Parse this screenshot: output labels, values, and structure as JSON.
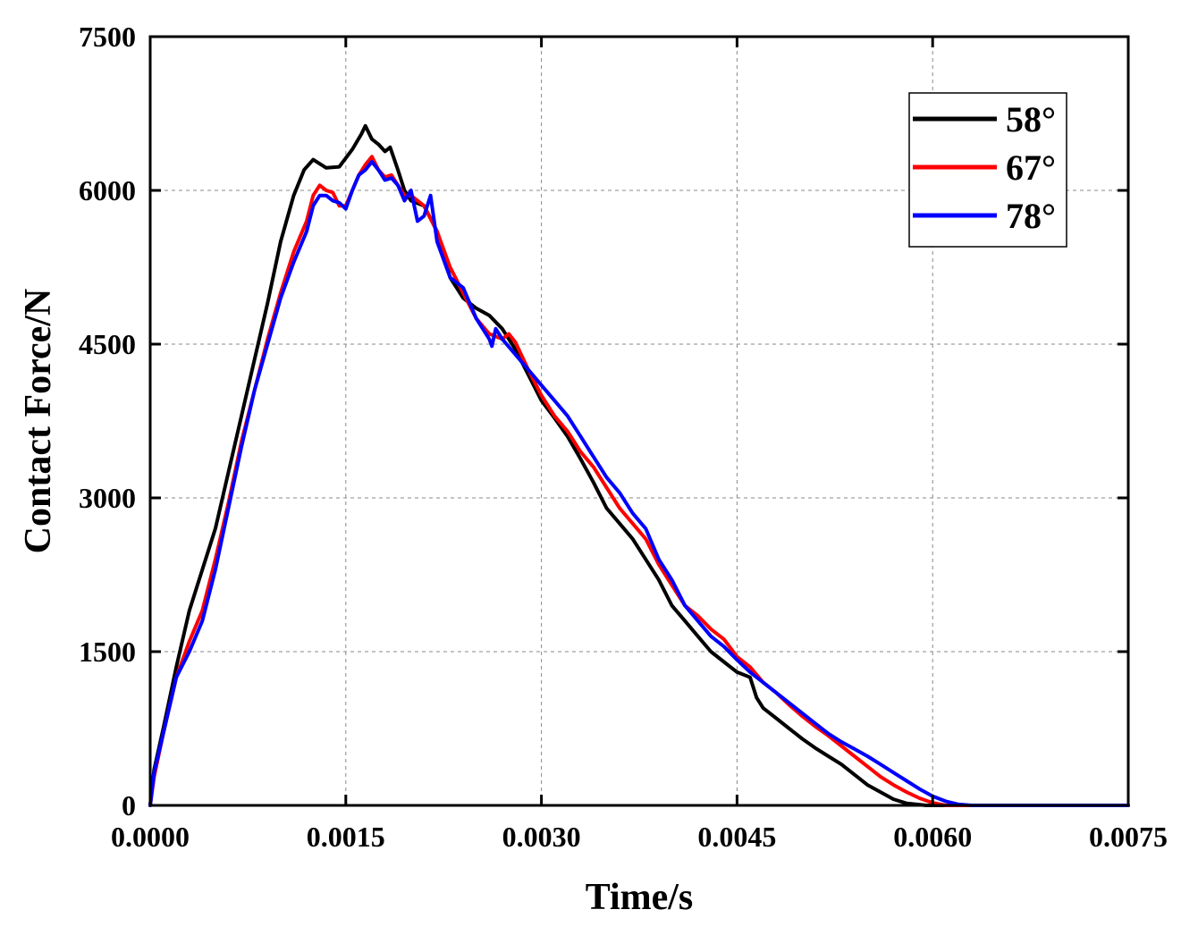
{
  "chart_data": {
    "type": "line",
    "title": "",
    "xlabel": "Time/s",
    "ylabel": "Contact Force/N",
    "xlim": [
      0,
      0.0075
    ],
    "ylim": [
      0,
      7500
    ],
    "xticks": [
      0,
      0.0015,
      0.003,
      0.0045,
      0.006,
      0.0075
    ],
    "xtick_labels": [
      "0.0000",
      "0.0015",
      "0.0030",
      "0.0045",
      "0.0060",
      "0.0075"
    ],
    "yticks": [
      0,
      1500,
      3000,
      4500,
      6000,
      7500
    ],
    "ytick_labels": [
      "0",
      "1500",
      "3000",
      "4500",
      "6000",
      "7500"
    ],
    "grid": true,
    "legend_position": "top-right",
    "series": [
      {
        "name": "58°",
        "color": "#000000",
        "points": [
          [
            0,
            0
          ],
          [
            3e-05,
            350
          ],
          [
            0.0001,
            750
          ],
          [
            0.0002,
            1350
          ],
          [
            0.0003,
            1900
          ],
          [
            0.0004,
            2300
          ],
          [
            0.0005,
            2700
          ],
          [
            0.0006,
            3250
          ],
          [
            0.0007,
            3800
          ],
          [
            0.0008,
            4350
          ],
          [
            0.0009,
            4900
          ],
          [
            0.001,
            5500
          ],
          [
            0.0011,
            5950
          ],
          [
            0.00118,
            6200
          ],
          [
            0.00125,
            6300
          ],
          [
            0.00135,
            6220
          ],
          [
            0.00145,
            6230
          ],
          [
            0.00155,
            6400
          ],
          [
            0.00162,
            6550
          ],
          [
            0.00165,
            6630
          ],
          [
            0.0017,
            6500
          ],
          [
            0.00175,
            6450
          ],
          [
            0.0018,
            6380
          ],
          [
            0.00184,
            6420
          ],
          [
            0.0019,
            6200
          ],
          [
            0.00195,
            6000
          ],
          [
            0.002,
            5900
          ],
          [
            0.0021,
            5850
          ],
          [
            0.0022,
            5600
          ],
          [
            0.0023,
            5150
          ],
          [
            0.0024,
            4950
          ],
          [
            0.0025,
            4850
          ],
          [
            0.0026,
            4780
          ],
          [
            0.0027,
            4650
          ],
          [
            0.0028,
            4450
          ],
          [
            0.0029,
            4200
          ],
          [
            0.003,
            3950
          ],
          [
            0.0031,
            3780
          ],
          [
            0.0032,
            3600
          ],
          [
            0.0033,
            3380
          ],
          [
            0.0034,
            3150
          ],
          [
            0.0035,
            2900
          ],
          [
            0.0036,
            2750
          ],
          [
            0.0037,
            2600
          ],
          [
            0.0038,
            2400
          ],
          [
            0.0039,
            2200
          ],
          [
            0.004,
            1950
          ],
          [
            0.0041,
            1800
          ],
          [
            0.0042,
            1650
          ],
          [
            0.0043,
            1500
          ],
          [
            0.0044,
            1400
          ],
          [
            0.0045,
            1300
          ],
          [
            0.0046,
            1250
          ],
          [
            0.00465,
            1050
          ],
          [
            0.0047,
            950
          ],
          [
            0.0048,
            850
          ],
          [
            0.0049,
            750
          ],
          [
            0.005,
            650
          ],
          [
            0.0051,
            560
          ],
          [
            0.0052,
            480
          ],
          [
            0.0053,
            400
          ],
          [
            0.0054,
            300
          ],
          [
            0.0055,
            200
          ],
          [
            0.0056,
            130
          ],
          [
            0.0057,
            60
          ],
          [
            0.0058,
            20
          ],
          [
            0.00595,
            0
          ],
          [
            0.0075,
            0
          ]
        ]
      },
      {
        "name": "67°",
        "color": "#ff0000",
        "points": [
          [
            0,
            0
          ],
          [
            3e-05,
            280
          ],
          [
            0.0001,
            700
          ],
          [
            0.0002,
            1250
          ],
          [
            0.0003,
            1600
          ],
          [
            0.0004,
            1900
          ],
          [
            0.0005,
            2400
          ],
          [
            0.0006,
            2950
          ],
          [
            0.0007,
            3550
          ],
          [
            0.0008,
            4050
          ],
          [
            0.0009,
            4550
          ],
          [
            0.001,
            5000
          ],
          [
            0.0011,
            5400
          ],
          [
            0.0012,
            5700
          ],
          [
            0.00125,
            5950
          ],
          [
            0.0013,
            6050
          ],
          [
            0.00135,
            6000
          ],
          [
            0.0014,
            5980
          ],
          [
            0.00145,
            5850
          ],
          [
            0.0015,
            5850
          ],
          [
            0.00155,
            6000
          ],
          [
            0.0016,
            6150
          ],
          [
            0.00165,
            6250
          ],
          [
            0.0017,
            6330
          ],
          [
            0.00175,
            6200
          ],
          [
            0.0018,
            6130
          ],
          [
            0.00185,
            6150
          ],
          [
            0.0019,
            6050
          ],
          [
            0.00195,
            5950
          ],
          [
            0.002,
            5950
          ],
          [
            0.0021,
            5850
          ],
          [
            0.0022,
            5600
          ],
          [
            0.0023,
            5250
          ],
          [
            0.0024,
            5000
          ],
          [
            0.0025,
            4750
          ],
          [
            0.0026,
            4600
          ],
          [
            0.0027,
            4550
          ],
          [
            0.00275,
            4600
          ],
          [
            0.0028,
            4520
          ],
          [
            0.0029,
            4250
          ],
          [
            0.003,
            4000
          ],
          [
            0.0031,
            3800
          ],
          [
            0.0032,
            3650
          ],
          [
            0.0033,
            3450
          ],
          [
            0.0034,
            3300
          ],
          [
            0.0035,
            3100
          ],
          [
            0.0036,
            2900
          ],
          [
            0.0037,
            2750
          ],
          [
            0.0038,
            2600
          ],
          [
            0.0039,
            2350
          ],
          [
            0.004,
            2150
          ],
          [
            0.0041,
            1950
          ],
          [
            0.0042,
            1850
          ],
          [
            0.0043,
            1720
          ],
          [
            0.0044,
            1620
          ],
          [
            0.0045,
            1450
          ],
          [
            0.0046,
            1350
          ],
          [
            0.0047,
            1200
          ],
          [
            0.0048,
            1100
          ],
          [
            0.0049,
            980
          ],
          [
            0.005,
            870
          ],
          [
            0.0051,
            770
          ],
          [
            0.0052,
            680
          ],
          [
            0.0053,
            580
          ],
          [
            0.0054,
            480
          ],
          [
            0.0055,
            380
          ],
          [
            0.0056,
            280
          ],
          [
            0.0057,
            200
          ],
          [
            0.0058,
            130
          ],
          [
            0.0059,
            70
          ],
          [
            0.006,
            25
          ],
          [
            0.0061,
            0
          ],
          [
            0.0075,
            0
          ]
        ]
      },
      {
        "name": "78°",
        "color": "#0000ff",
        "points": [
          [
            0,
            0
          ],
          [
            3e-05,
            320
          ],
          [
            0.0001,
            700
          ],
          [
            0.0002,
            1250
          ],
          [
            0.0003,
            1500
          ],
          [
            0.0004,
            1800
          ],
          [
            0.0005,
            2300
          ],
          [
            0.0006,
            2900
          ],
          [
            0.0007,
            3500
          ],
          [
            0.0008,
            4050
          ],
          [
            0.0009,
            4500
          ],
          [
            0.001,
            4950
          ],
          [
            0.0011,
            5300
          ],
          [
            0.0012,
            5600
          ],
          [
            0.00125,
            5850
          ],
          [
            0.0013,
            5950
          ],
          [
            0.00135,
            5950
          ],
          [
            0.0014,
            5900
          ],
          [
            0.00145,
            5880
          ],
          [
            0.0015,
            5820
          ],
          [
            0.00155,
            6000
          ],
          [
            0.0016,
            6150
          ],
          [
            0.00165,
            6200
          ],
          [
            0.0017,
            6280
          ],
          [
            0.00175,
            6200
          ],
          [
            0.0018,
            6100
          ],
          [
            0.00185,
            6120
          ],
          [
            0.0019,
            6050
          ],
          [
            0.00195,
            5900
          ],
          [
            0.002,
            6000
          ],
          [
            0.00205,
            5700
          ],
          [
            0.0021,
            5750
          ],
          [
            0.00215,
            5950
          ],
          [
            0.0022,
            5500
          ],
          [
            0.0023,
            5150
          ],
          [
            0.0024,
            5050
          ],
          [
            0.0025,
            4750
          ],
          [
            0.0026,
            4550
          ],
          [
            0.00262,
            4480
          ],
          [
            0.00265,
            4650
          ],
          [
            0.0027,
            4550
          ],
          [
            0.0028,
            4400
          ],
          [
            0.0029,
            4250
          ],
          [
            0.003,
            4100
          ],
          [
            0.0031,
            3950
          ],
          [
            0.0032,
            3800
          ],
          [
            0.0033,
            3600
          ],
          [
            0.0034,
            3400
          ],
          [
            0.0035,
            3200
          ],
          [
            0.0036,
            3050
          ],
          [
            0.0037,
            2850
          ],
          [
            0.0038,
            2700
          ],
          [
            0.0039,
            2400
          ],
          [
            0.004,
            2200
          ],
          [
            0.0041,
            1950
          ],
          [
            0.0042,
            1800
          ],
          [
            0.0043,
            1650
          ],
          [
            0.0044,
            1550
          ],
          [
            0.0045,
            1420
          ],
          [
            0.0046,
            1300
          ],
          [
            0.0047,
            1200
          ],
          [
            0.0048,
            1100
          ],
          [
            0.0049,
            1000
          ],
          [
            0.005,
            900
          ],
          [
            0.0051,
            800
          ],
          [
            0.0052,
            700
          ],
          [
            0.0053,
            620
          ],
          [
            0.0054,
            550
          ],
          [
            0.0055,
            480
          ],
          [
            0.0056,
            400
          ],
          [
            0.0057,
            320
          ],
          [
            0.0058,
            240
          ],
          [
            0.0059,
            160
          ],
          [
            0.006,
            90
          ],
          [
            0.0061,
            40
          ],
          [
            0.0062,
            10
          ],
          [
            0.0063,
            0
          ],
          [
            0.0075,
            0
          ]
        ]
      }
    ]
  }
}
